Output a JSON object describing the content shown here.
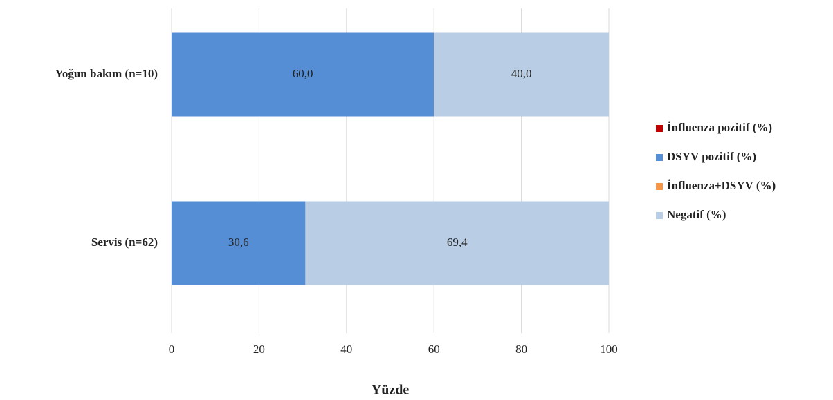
{
  "chart_data": {
    "type": "stacked-barh",
    "x_label": "Yüzde",
    "categories": [
      "Yoğun bakım (n=10)",
      "Servis (n=62)"
    ],
    "series": [
      {
        "name": "İnfluenza pozitif (%)",
        "color": "#c00000",
        "values": [
          0,
          0
        ]
      },
      {
        "name": "DSYV pozitif (%)",
        "color": "#558ed5",
        "values": [
          60.0,
          30.6
        ],
        "value_labels": [
          "60,0",
          "30,6"
        ]
      },
      {
        "name": "İnfluenza+DSYV (%)",
        "color": "#f79646",
        "values": [
          0,
          0
        ]
      },
      {
        "name": "Negatif (%)",
        "color": "#b9cde5",
        "values": [
          40.0,
          69.4
        ],
        "value_labels": [
          "40,0",
          "69,4"
        ]
      }
    ],
    "xlim": [
      0,
      100
    ],
    "xticks": [
      0,
      20,
      40,
      60,
      80,
      100
    ],
    "grid": true,
    "legend": "right"
  }
}
